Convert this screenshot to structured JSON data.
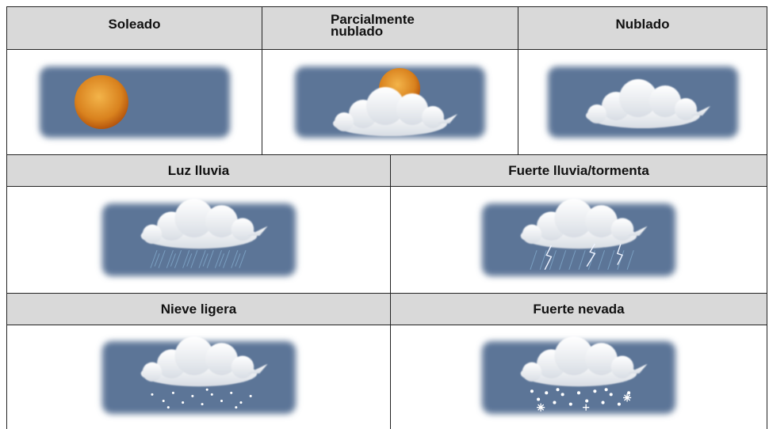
{
  "table": {
    "rows": [
      {
        "cells": [
          {
            "label": "Soleado"
          },
          {
            "label": "Parcialmente nublado"
          },
          {
            "label": "Nublado"
          }
        ]
      },
      {
        "cells": [
          {
            "label": "Luz lluvia"
          },
          {
            "label": "Fuerte lluvia/tormenta"
          }
        ]
      },
      {
        "cells": [
          {
            "label": "Nieve ligera"
          },
          {
            "label": "Fuerte nevada"
          }
        ]
      }
    ]
  }
}
